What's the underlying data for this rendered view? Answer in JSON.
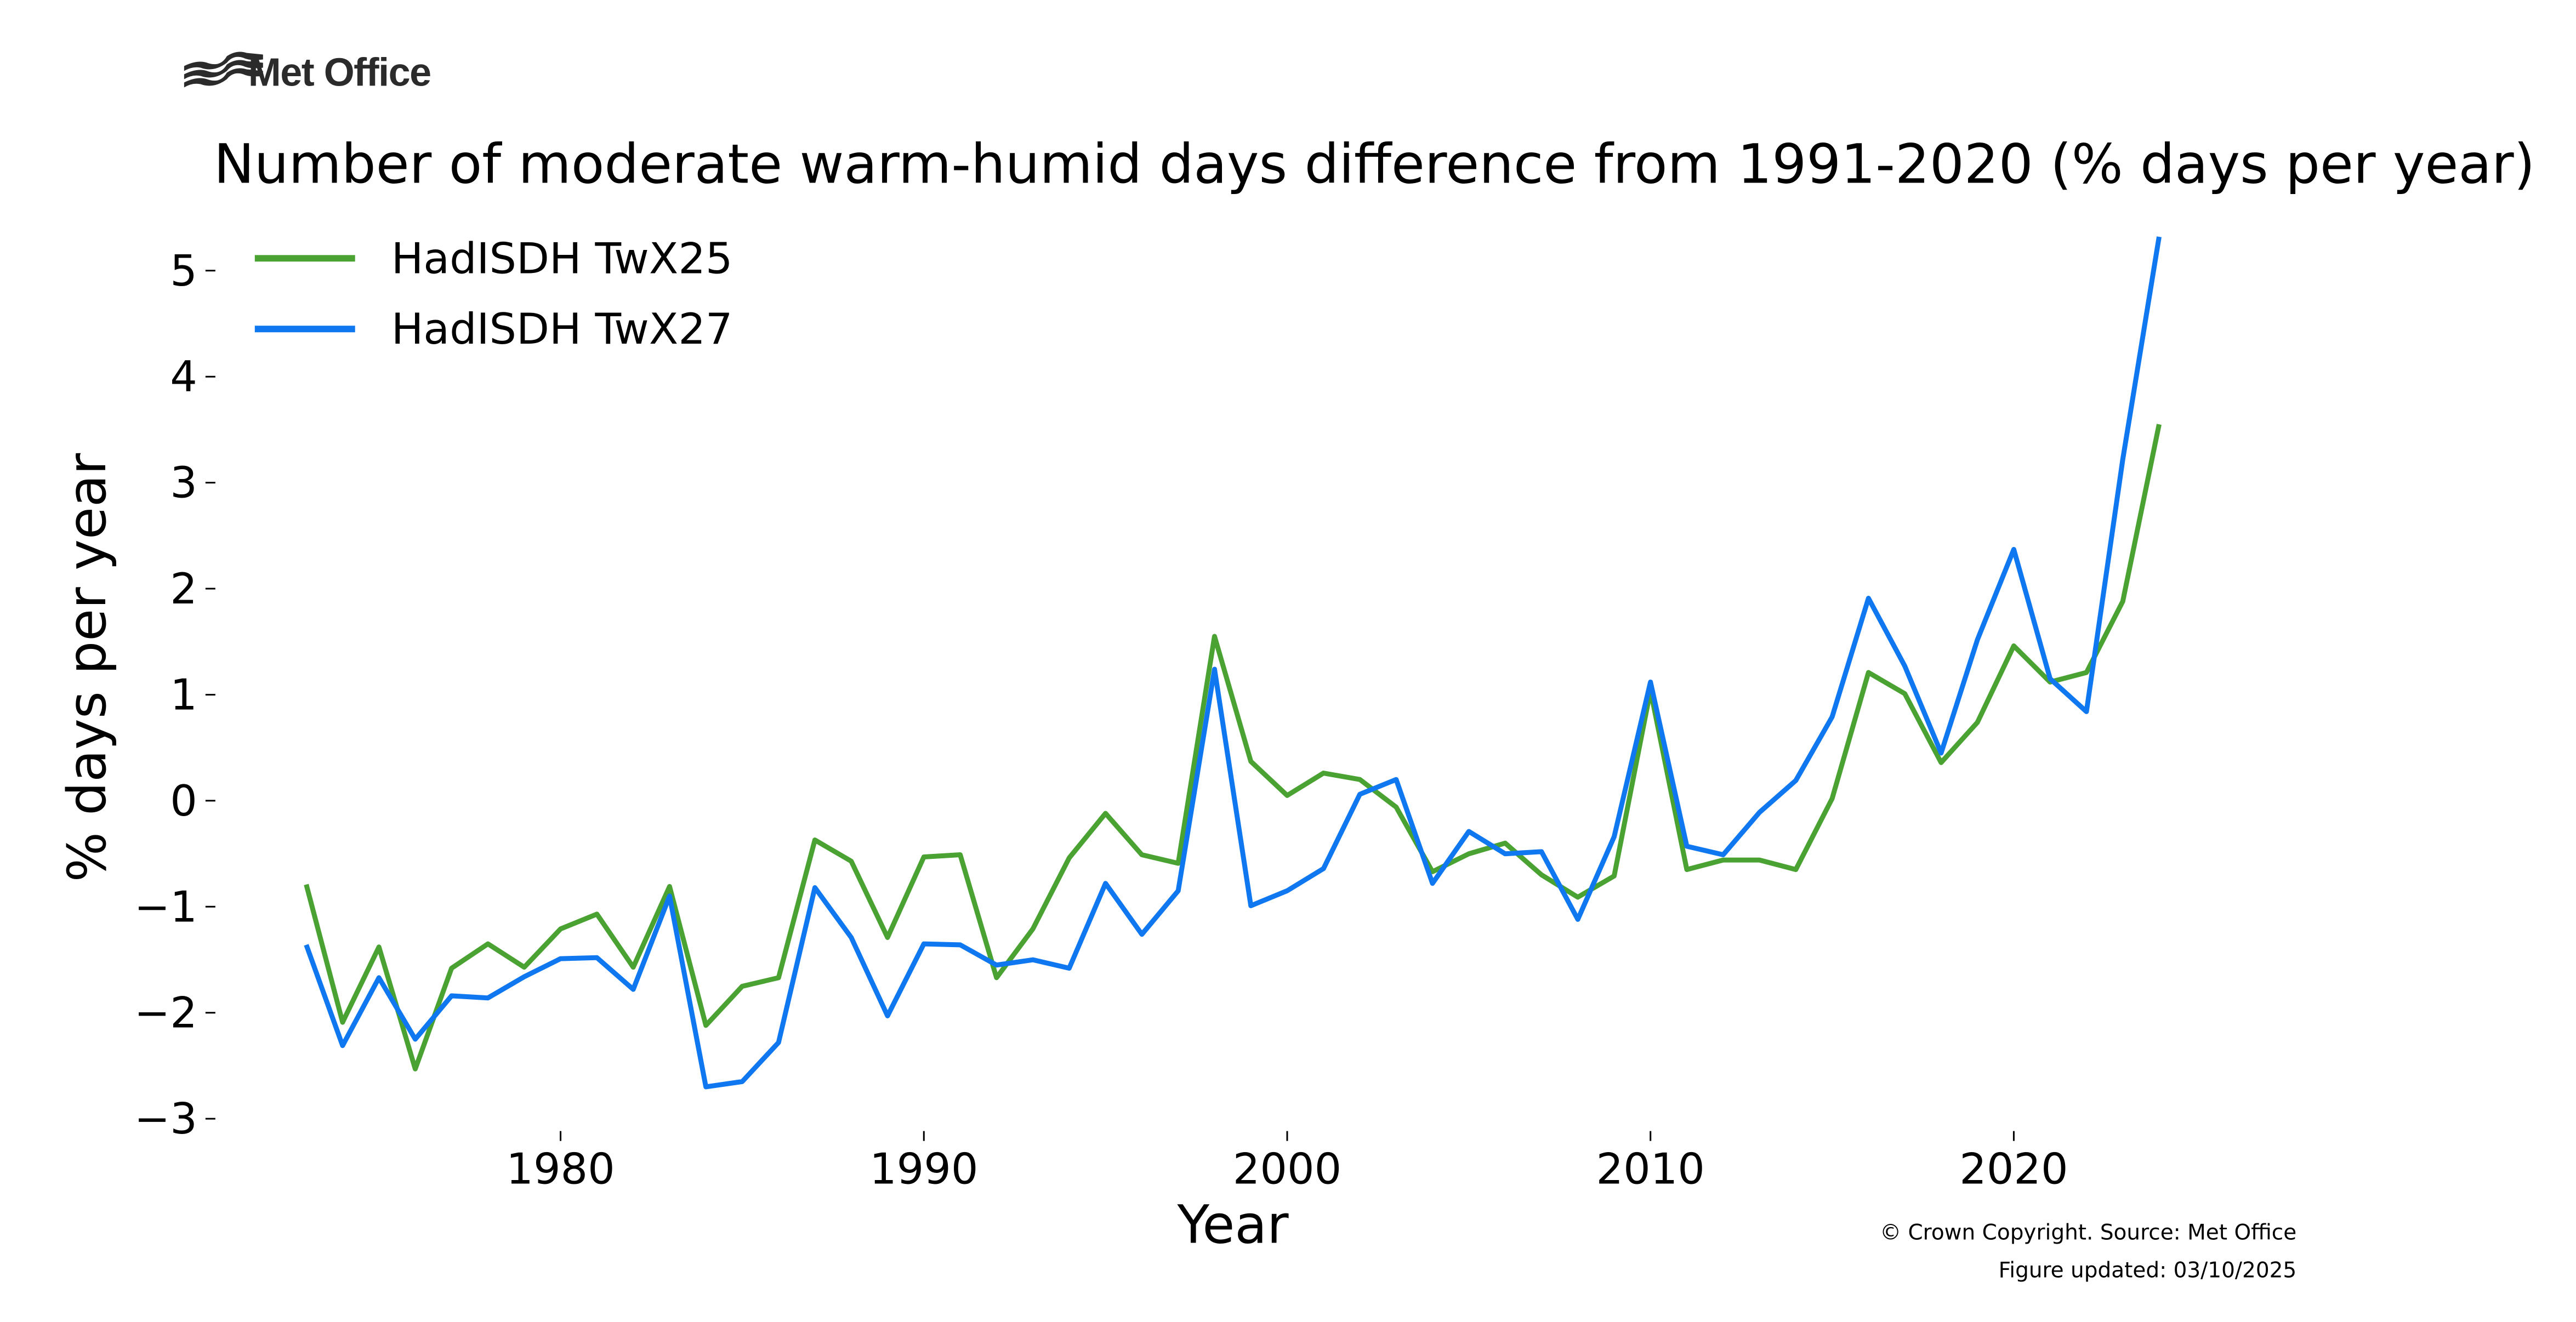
{
  "logo": {
    "text": "Met Office"
  },
  "chart_data": {
    "type": "line",
    "title": "Number of moderate warm-humid days difference from 1991-2020 (% days per year)",
    "xlabel": "Year",
    "ylabel": "% days per year",
    "xlim": [
      1972,
      2025
    ],
    "ylim": [
      -3,
      5.4
    ],
    "x_ticks": [
      1980,
      1990,
      2000,
      2010,
      2020
    ],
    "y_ticks": [
      -3,
      -2,
      -1,
      0,
      1,
      2,
      3,
      4,
      5
    ],
    "y_tick_labels": [
      "−3",
      "−2",
      "−1",
      "0",
      "1",
      "2",
      "3",
      "4",
      "5"
    ],
    "grid": false,
    "legend_position": "top-left",
    "x": [
      1973,
      1974,
      1975,
      1976,
      1977,
      1978,
      1979,
      1980,
      1981,
      1982,
      1983,
      1984,
      1985,
      1986,
      1987,
      1988,
      1989,
      1990,
      1991,
      1992,
      1993,
      1994,
      1995,
      1996,
      1997,
      1998,
      1999,
      2000,
      2001,
      2002,
      2003,
      2004,
      2005,
      2006,
      2007,
      2008,
      2009,
      2010,
      2011,
      2012,
      2013,
      2014,
      2015,
      2016,
      2017,
      2018,
      2019,
      2020,
      2021,
      2022,
      2023,
      2024
    ],
    "series": [
      {
        "name": "HadISDH TwX25",
        "color": "#4aa232",
        "values": [
          -0.79,
          -2.09,
          -1.38,
          -2.53,
          -1.58,
          -1.35,
          -1.57,
          -1.21,
          -1.07,
          -1.57,
          -0.81,
          -2.12,
          -1.75,
          -1.67,
          -0.37,
          -0.57,
          -1.29,
          -0.53,
          -0.51,
          -1.67,
          -1.21,
          -0.54,
          -0.12,
          -0.51,
          -0.59,
          1.55,
          0.37,
          0.05,
          0.26,
          0.2,
          -0.06,
          -0.67,
          -0.5,
          -0.4,
          -0.7,
          -0.91,
          -0.71,
          1.04,
          -0.65,
          -0.56,
          -0.56,
          -0.65,
          0.02,
          1.21,
          1.01,
          0.36,
          0.74,
          1.46,
          1.12,
          1.21,
          1.88,
          3.55
        ]
      },
      {
        "name": "HadISDH TwX27",
        "color": "#0f77f0",
        "values": [
          -1.36,
          -2.31,
          -1.67,
          -2.25,
          -1.84,
          -1.86,
          -1.66,
          -1.49,
          -1.48,
          -1.78,
          -0.9,
          -2.7,
          -2.65,
          -2.28,
          -0.82,
          -1.29,
          -2.03,
          -1.35,
          -1.36,
          -1.55,
          -1.5,
          -1.58,
          -0.78,
          -1.26,
          -0.85,
          1.24,
          -0.99,
          -0.85,
          -0.64,
          0.06,
          0.2,
          -0.78,
          -0.29,
          -0.5,
          -0.48,
          -1.12,
          -0.34,
          1.12,
          -0.43,
          -0.51,
          -0.11,
          0.19,
          0.79,
          1.91,
          1.27,
          0.45,
          1.52,
          2.37,
          1.15,
          0.84,
          3.22,
          5.32
        ]
      }
    ]
  },
  "footer": {
    "copyright": "© Crown Copyright. Source: Met Office",
    "updated": "Figure updated: 03/10/2025"
  }
}
